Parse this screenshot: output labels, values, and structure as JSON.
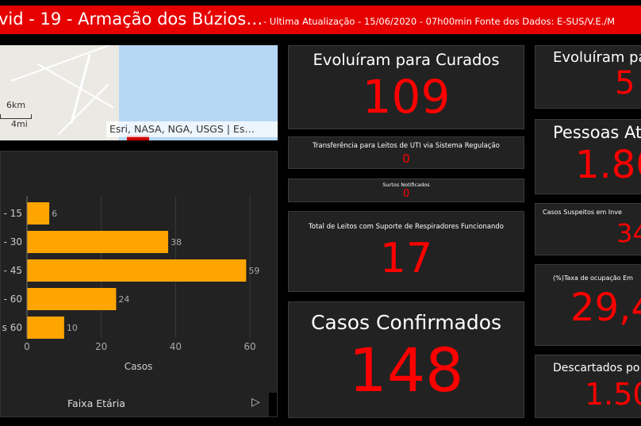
{
  "header": {
    "title": "vid - 19 - Armação dos Búzios…",
    "subtitle": "- Ultima Atualização - 15/06/2020 - 07h00min Fonte dos Dados: E-SUS/V.E./M"
  },
  "map": {
    "scale_km": "6km",
    "scale_mi": "4mi",
    "attribution": "Esri, NASA, NGA, USGS | Es…"
  },
  "chart": {
    "xlabel": "Casos",
    "footer": "Faixa Etária",
    "next_icon": "▷"
  },
  "chart_data": {
    "type": "bar",
    "orientation": "horizontal",
    "categories": [
      "- 15",
      "- 30",
      "- 45",
      "- 60",
      "s 60"
    ],
    "values": [
      6,
      38,
      59,
      24,
      10
    ],
    "xlabel": "Casos",
    "xlim": [
      0,
      60
    ],
    "xticks": [
      0,
      20,
      40,
      60
    ],
    "color": "#ffa500",
    "grid": true
  },
  "cards": {
    "curados": {
      "label": "Evoluíram para Curados",
      "value": "109"
    },
    "uti": {
      "label": "Transferência para Leitos de UTI via Sistema Regulação",
      "value": "0"
    },
    "surtos": {
      "label": "Surtos Notificados",
      "value": "0"
    },
    "leitos": {
      "label": "Total de Leitos com Suporte de Respiradores Funcionando",
      "value": "17"
    },
    "confirmados": {
      "label": "Casos Confirmados",
      "value": "148"
    },
    "obitos": {
      "label": "Evoluíram pa",
      "value": "5"
    },
    "atendidas": {
      "label": "Pessoas At",
      "value": "1.80"
    },
    "suspeitos": {
      "label": "Casos Suspeitos em Inve",
      "value": "34"
    },
    "ocupacao": {
      "label": "(%)Taxa de ocupação Em",
      "value": "29,4"
    },
    "descartados": {
      "label": "Descartados po",
      "value": "1.50"
    }
  },
  "colors": {
    "header": "#e60000",
    "value": "#ff0000",
    "bar": "#ffa500",
    "panel": "#222222"
  }
}
